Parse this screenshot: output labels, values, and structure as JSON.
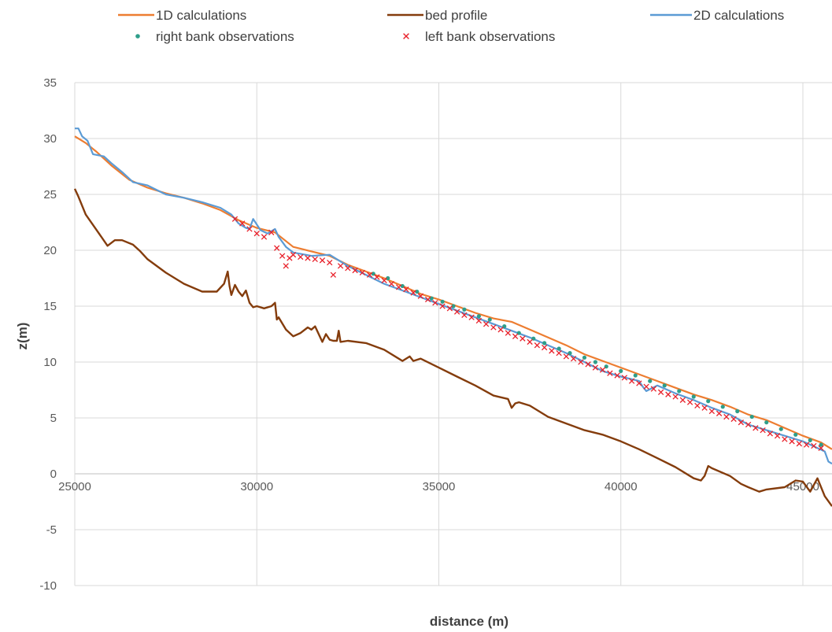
{
  "chart_data": {
    "type": "line",
    "title": "",
    "xlabel": "distance (m)",
    "ylabel": "z(m)",
    "xlim": [
      25000,
      45800
    ],
    "ylim": [
      -10,
      35
    ],
    "grid": true,
    "legend_position": "top",
    "x_ticks": [
      {
        "value": 25000,
        "label": "25000"
      },
      {
        "value": 30000,
        "label": "30000"
      },
      {
        "value": 35000,
        "label": "35000"
      },
      {
        "value": 40000,
        "label": "40000"
      },
      {
        "value": 45000,
        "label": "45000"
      }
    ],
    "y_ticks": [
      {
        "value": 35,
        "label": "35"
      },
      {
        "value": 30,
        "label": "30"
      },
      {
        "value": 25,
        "label": "25"
      },
      {
        "value": 20,
        "label": "20"
      },
      {
        "value": 15,
        "label": "15"
      },
      {
        "value": 10,
        "label": "10"
      },
      {
        "value": 5,
        "label": "5"
      },
      {
        "value": 0,
        "label": "0"
      },
      {
        "value": -5,
        "label": "-5"
      },
      {
        "value": -10,
        "label": "-10"
      }
    ],
    "series": [
      {
        "name": "1D calculations",
        "kind": "line",
        "color": "#ED7D31",
        "x": [
          25000,
          25300,
          25600,
          26000,
          26500,
          27000,
          27500,
          28000,
          28500,
          29000,
          29500,
          30000,
          30500,
          31000,
          31500,
          32000,
          32500,
          33000,
          33500,
          34000,
          34500,
          35000,
          35500,
          36000,
          36500,
          37000,
          37500,
          38000,
          38500,
          39000,
          39500,
          40000,
          40500,
          41000,
          41500,
          42000,
          42500,
          43000,
          43500,
          44000,
          44500,
          45000,
          45500,
          45800
        ],
        "y": [
          30.2,
          29.6,
          28.8,
          27.6,
          26.3,
          25.6,
          25.1,
          24.7,
          24.2,
          23.6,
          22.7,
          22.0,
          21.6,
          20.3,
          19.9,
          19.5,
          18.7,
          18.1,
          17.5,
          16.8,
          16.1,
          15.6,
          15.0,
          14.4,
          13.9,
          13.6,
          12.9,
          12.2,
          11.5,
          10.7,
          10.1,
          9.5,
          8.9,
          8.3,
          7.7,
          7.1,
          6.6,
          6.0,
          5.3,
          4.8,
          4.1,
          3.4,
          2.8,
          2.2
        ]
      },
      {
        "name": "bed profile",
        "kind": "line",
        "color": "#843C0C",
        "x": [
          25000,
          25100,
          25300,
          25600,
          25900,
          26100,
          26300,
          26600,
          26800,
          27000,
          27500,
          28000,
          28500,
          28900,
          29100,
          29200,
          29250,
          29300,
          29400,
          29500,
          29600,
          29700,
          29800,
          29900,
          30000,
          30200,
          30400,
          30500,
          30550,
          30600,
          30800,
          31000,
          31200,
          31400,
          31500,
          31600,
          31800,
          31900,
          32000,
          32100,
          32200,
          32250,
          32300,
          32500,
          33000,
          33500,
          34000,
          34200,
          34300,
          34500,
          35000,
          35500,
          36000,
          36500,
          36900,
          37000,
          37100,
          37200,
          37500,
          38000,
          38500,
          39000,
          39500,
          40000,
          40500,
          41000,
          41500,
          42000,
          42200,
          42300,
          42400,
          42500,
          43000,
          43300,
          43500,
          43800,
          44000,
          44500,
          44800,
          45000,
          45200,
          45400,
          45600,
          45800
        ],
        "y": [
          25.5,
          24.8,
          23.2,
          21.8,
          20.4,
          20.9,
          20.9,
          20.5,
          19.9,
          19.2,
          18.0,
          17.0,
          16.3,
          16.3,
          17.0,
          18.1,
          16.8,
          16.0,
          16.9,
          16.3,
          15.9,
          16.4,
          15.3,
          14.9,
          15.0,
          14.8,
          15.0,
          15.3,
          13.8,
          14.0,
          12.9,
          12.3,
          12.6,
          13.1,
          12.9,
          13.2,
          11.8,
          12.5,
          12.0,
          11.9,
          11.9,
          12.8,
          11.8,
          11.9,
          11.7,
          11.1,
          10.1,
          10.5,
          10.1,
          10.3,
          9.5,
          8.7,
          7.9,
          7.0,
          6.7,
          5.9,
          6.3,
          6.4,
          6.1,
          5.1,
          4.5,
          3.9,
          3.5,
          2.9,
          2.2,
          1.4,
          0.6,
          -0.4,
          -0.6,
          -0.2,
          0.7,
          0.5,
          -0.2,
          -0.9,
          -1.2,
          -1.6,
          -1.4,
          -1.2,
          -0.6,
          -0.7,
          -1.6,
          -0.4,
          -2.0,
          -2.9
        ]
      },
      {
        "name": "2D calculations",
        "kind": "line",
        "color": "#5B9BD5",
        "x": [
          25000,
          25100,
          25200,
          25350,
          25500,
          25800,
          26000,
          26300,
          26600,
          27000,
          27500,
          28000,
          28500,
          29000,
          29300,
          29500,
          29700,
          29800,
          29900,
          30100,
          30300,
          30500,
          30600,
          30800,
          31000,
          31500,
          32000,
          32500,
          33000,
          33500,
          34000,
          34500,
          35000,
          35500,
          36000,
          36500,
          37000,
          37500,
          38000,
          38500,
          39000,
          39500,
          40000,
          40500,
          40600,
          40700,
          41000,
          41500,
          42000,
          42500,
          43000,
          43500,
          44000,
          44500,
          45000,
          45400,
          45600,
          45700,
          45800
        ],
        "y": [
          30.9,
          30.9,
          30.2,
          29.8,
          28.6,
          28.4,
          27.8,
          27.0,
          26.1,
          25.8,
          25.0,
          24.7,
          24.3,
          23.8,
          23.2,
          22.4,
          22.0,
          21.9,
          22.8,
          21.8,
          21.5,
          21.9,
          21.2,
          20.3,
          19.8,
          19.5,
          19.6,
          18.6,
          17.8,
          17.0,
          16.4,
          15.8,
          15.2,
          14.6,
          14.0,
          13.4,
          12.8,
          12.2,
          11.5,
          10.8,
          10.0,
          9.2,
          8.7,
          8.3,
          7.8,
          7.4,
          7.9,
          7.2,
          6.6,
          5.9,
          5.3,
          4.4,
          3.9,
          3.4,
          2.9,
          2.3,
          2.0,
          1.1,
          0.9
        ]
      },
      {
        "name": "right bank observations",
        "kind": "markers-dot",
        "color": "#2E9E8A",
        "x": [
          33200,
          33600,
          34000,
          34400,
          34800,
          35100,
          35400,
          35700,
          36100,
          36400,
          36800,
          37200,
          37600,
          37900,
          38300,
          38600,
          39000,
          39300,
          39600,
          40000,
          40400,
          40800,
          41200,
          41600,
          42000,
          42400,
          42800,
          43200,
          43600,
          44000,
          44400,
          44800,
          45200,
          45500
        ],
        "y": [
          17.9,
          17.5,
          16.8,
          16.3,
          15.7,
          15.4,
          15.0,
          14.7,
          14.1,
          13.8,
          13.2,
          12.6,
          12.1,
          11.7,
          11.2,
          10.8,
          10.4,
          10.0,
          9.6,
          9.2,
          8.8,
          8.3,
          7.9,
          7.4,
          6.9,
          6.5,
          6.0,
          5.6,
          5.1,
          4.6,
          4.0,
          3.5,
          3.0,
          2.6
        ]
      },
      {
        "name": "left bank observations",
        "kind": "markers-x",
        "color": "#E8202A",
        "x": [
          29400,
          29600,
          29800,
          30000,
          30200,
          30400,
          30550,
          30700,
          30800,
          30900,
          31000,
          31200,
          31400,
          31600,
          31800,
          32000,
          32100,
          32300,
          32500,
          32700,
          32900,
          33100,
          33300,
          33500,
          33700,
          33900,
          34100,
          34300,
          34500,
          34700,
          34900,
          35100,
          35300,
          35500,
          35700,
          35900,
          36100,
          36300,
          36500,
          36700,
          36900,
          37100,
          37300,
          37500,
          37700,
          37900,
          38100,
          38300,
          38500,
          38700,
          38900,
          39100,
          39300,
          39500,
          39700,
          39900,
          40100,
          40300,
          40500,
          40700,
          40900,
          41100,
          41300,
          41500,
          41700,
          41900,
          42100,
          42300,
          42500,
          42700,
          42900,
          43100,
          43300,
          43500,
          43700,
          43900,
          44100,
          44300,
          44500,
          44700,
          44900,
          45100,
          45300,
          45500
        ],
        "y": [
          22.8,
          22.4,
          21.9,
          21.5,
          21.2,
          21.6,
          20.2,
          19.5,
          18.6,
          19.3,
          19.6,
          19.4,
          19.3,
          19.2,
          19.1,
          18.9,
          17.8,
          18.6,
          18.4,
          18.2,
          18.0,
          17.8,
          17.6,
          17.3,
          17.0,
          16.7,
          16.5,
          16.2,
          15.9,
          15.6,
          15.3,
          15.0,
          14.8,
          14.5,
          14.2,
          14.0,
          13.7,
          13.4,
          13.1,
          12.9,
          12.6,
          12.3,
          12.1,
          11.8,
          11.5,
          11.3,
          11.0,
          10.8,
          10.5,
          10.3,
          10.0,
          9.8,
          9.5,
          9.3,
          9.0,
          8.8,
          8.6,
          8.3,
          8.1,
          7.8,
          7.6,
          7.3,
          7.1,
          6.9,
          6.6,
          6.4,
          6.1,
          5.9,
          5.6,
          5.4,
          5.1,
          4.9,
          4.6,
          4.4,
          4.1,
          3.9,
          3.6,
          3.4,
          3.1,
          2.9,
          2.7,
          2.6,
          2.5,
          2.3
        ]
      }
    ]
  }
}
